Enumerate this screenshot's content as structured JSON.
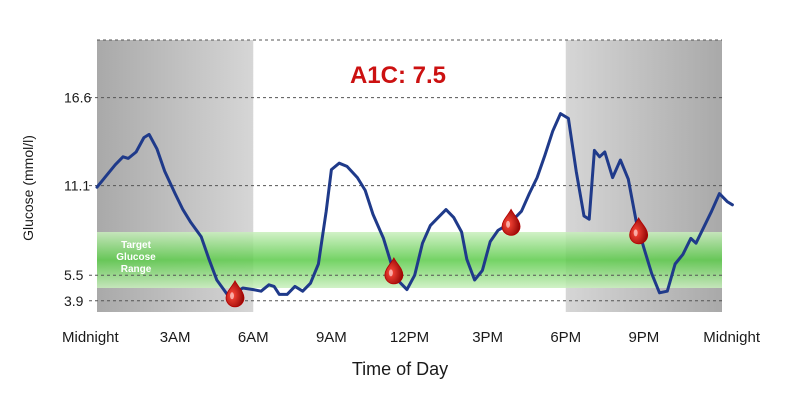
{
  "chart_data": {
    "type": "line",
    "title": "A1C: 7.5",
    "xlabel": "Time of Day",
    "ylabel": "Glucose (mmol/l)",
    "x_ticks": [
      {
        "hour": 0,
        "label": "Midnight"
      },
      {
        "hour": 3,
        "label": "3AM"
      },
      {
        "hour": 6,
        "label": "6AM"
      },
      {
        "hour": 9,
        "label": "9AM"
      },
      {
        "hour": 12,
        "label": "12PM"
      },
      {
        "hour": 15,
        "label": "3PM"
      },
      {
        "hour": 18,
        "label": "6PM"
      },
      {
        "hour": 21,
        "label": "9PM"
      },
      {
        "hour": 24,
        "label": "Midnight"
      }
    ],
    "y_ticks": [
      3.9,
      5.5,
      11.1,
      16.6
    ],
    "xlim": [
      0,
      24
    ],
    "ylim": [
      3.2,
      20.2
    ],
    "target_range": {
      "low": 4.7,
      "high": 8.2,
      "label": "Target Glucose Range"
    },
    "series": [
      {
        "color": "#1f3a8a",
        "points": [
          [
            0.0,
            11.0
          ],
          [
            0.3,
            11.6
          ],
          [
            0.7,
            12.4
          ],
          [
            1.0,
            12.9
          ],
          [
            1.2,
            12.8
          ],
          [
            1.5,
            13.2
          ],
          [
            1.8,
            14.1
          ],
          [
            2.0,
            14.3
          ],
          [
            2.3,
            13.4
          ],
          [
            2.6,
            12.0
          ],
          [
            3.0,
            10.6
          ],
          [
            3.3,
            9.6
          ],
          [
            3.6,
            8.8
          ],
          [
            4.0,
            7.9
          ],
          [
            4.3,
            6.5
          ],
          [
            4.6,
            5.2
          ],
          [
            5.0,
            4.3
          ],
          [
            5.3,
            4.4
          ],
          [
            5.6,
            4.7
          ],
          [
            6.0,
            4.6
          ],
          [
            6.3,
            4.5
          ],
          [
            6.6,
            4.9
          ],
          [
            6.8,
            4.8
          ],
          [
            7.0,
            4.3
          ],
          [
            7.3,
            4.3
          ],
          [
            7.6,
            4.8
          ],
          [
            7.9,
            4.5
          ],
          [
            8.2,
            5.0
          ],
          [
            8.5,
            6.2
          ],
          [
            8.8,
            9.5
          ],
          [
            9.0,
            12.1
          ],
          [
            9.3,
            12.5
          ],
          [
            9.6,
            12.3
          ],
          [
            10.0,
            11.6
          ],
          [
            10.3,
            10.8
          ],
          [
            10.6,
            9.3
          ],
          [
            11.0,
            7.8
          ],
          [
            11.3,
            6.2
          ],
          [
            11.6,
            5.1
          ],
          [
            11.9,
            4.6
          ],
          [
            12.2,
            5.5
          ],
          [
            12.5,
            7.5
          ],
          [
            12.8,
            8.6
          ],
          [
            13.1,
            9.1
          ],
          [
            13.4,
            9.6
          ],
          [
            13.7,
            9.1
          ],
          [
            14.0,
            8.2
          ],
          [
            14.2,
            6.5
          ],
          [
            14.5,
            5.2
          ],
          [
            14.8,
            5.8
          ],
          [
            15.1,
            7.6
          ],
          [
            15.4,
            8.3
          ],
          [
            15.7,
            8.6
          ],
          [
            16.0,
            9.0
          ],
          [
            16.3,
            9.5
          ],
          [
            16.6,
            10.6
          ],
          [
            16.9,
            11.6
          ],
          [
            17.2,
            13.0
          ],
          [
            17.5,
            14.5
          ],
          [
            17.8,
            15.6
          ],
          [
            18.1,
            15.3
          ],
          [
            18.4,
            12.0
          ],
          [
            18.7,
            9.2
          ],
          [
            18.9,
            9.0
          ],
          [
            19.1,
            13.3
          ],
          [
            19.3,
            12.9
          ],
          [
            19.5,
            13.2
          ],
          [
            19.8,
            11.6
          ],
          [
            20.1,
            12.7
          ],
          [
            20.4,
            11.5
          ],
          [
            20.7,
            8.9
          ],
          [
            21.0,
            7.2
          ],
          [
            21.3,
            5.6
          ],
          [
            21.6,
            4.4
          ],
          [
            21.9,
            4.5
          ],
          [
            22.2,
            6.2
          ],
          [
            22.5,
            6.8
          ],
          [
            22.8,
            7.8
          ],
          [
            23.0,
            7.5
          ],
          [
            23.3,
            8.5
          ],
          [
            23.6,
            9.5
          ],
          [
            23.9,
            10.6
          ],
          [
            24.2,
            10.1
          ],
          [
            24.4,
            9.9
          ]
        ]
      }
    ],
    "finger_sticks": [
      {
        "hour": 5.3
      },
      {
        "hour": 11.4
      },
      {
        "hour": 15.9
      },
      {
        "hour": 20.8
      }
    ],
    "colors": {
      "shade": "#b8b8b8",
      "plot_white": "#ffffff",
      "band": "#7dd36d",
      "line": "#1f3a8a",
      "title": "#cc1111",
      "drop": "#b30000"
    }
  }
}
